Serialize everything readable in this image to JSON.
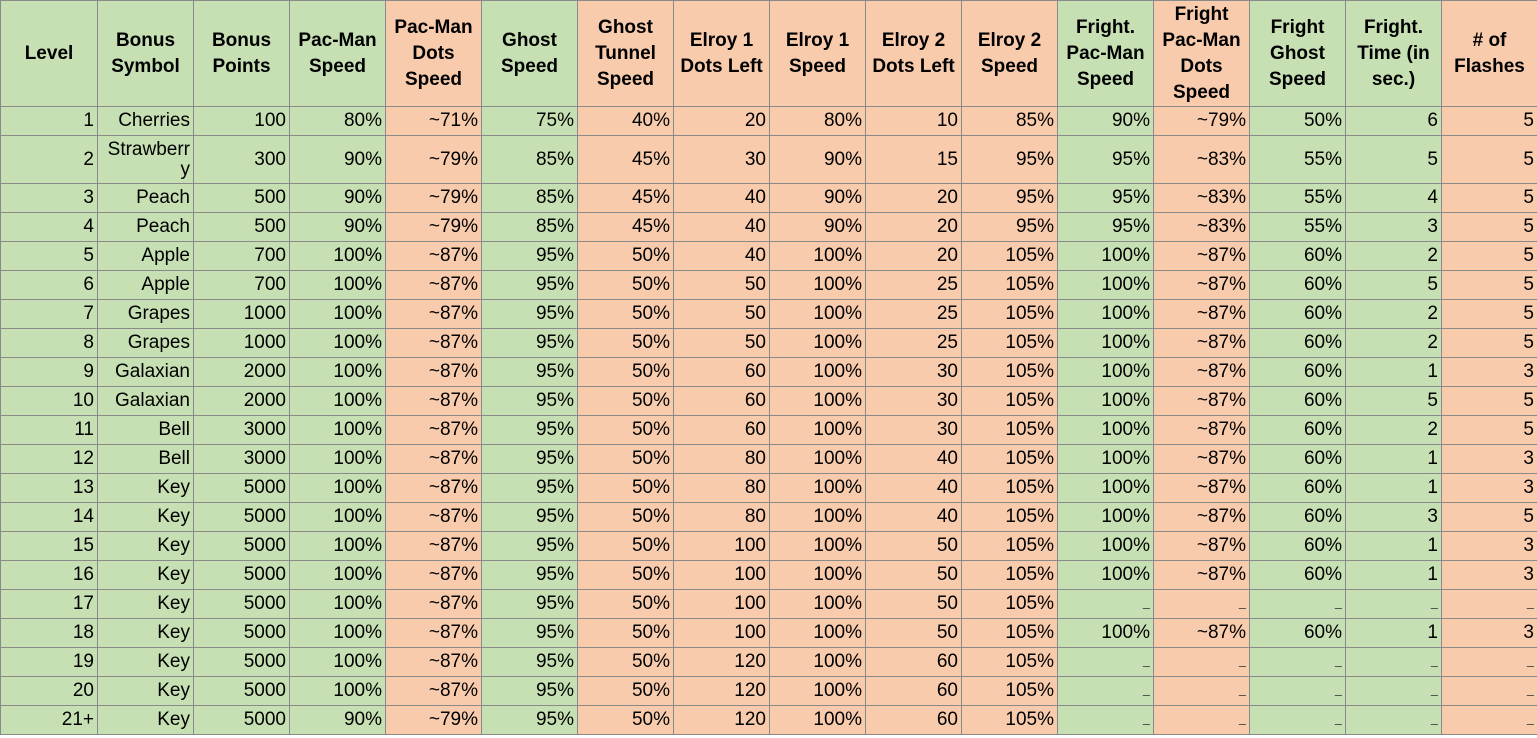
{
  "columns": [
    {
      "label": "Level",
      "color": "#c6e0b4"
    },
    {
      "label": "Bonus Symbol",
      "color": "#c6e0b4"
    },
    {
      "label": "Bonus Points",
      "color": "#c6e0b4"
    },
    {
      "label": "Pac-Man Speed",
      "color": "#c6e0b4"
    },
    {
      "label": "Pac-Man Dots Speed",
      "color": "#f8cbad"
    },
    {
      "label": "Ghost Speed",
      "color": "#c6e0b4"
    },
    {
      "label": "Ghost Tunnel Speed",
      "color": "#f8cbad"
    },
    {
      "label": "Elroy 1 Dots Left",
      "color": "#f8cbad"
    },
    {
      "label": "Elroy 1 Speed",
      "color": "#f8cbad"
    },
    {
      "label": "Elroy 2 Dots Left",
      "color": "#f8cbad"
    },
    {
      "label": "Elroy 2 Speed",
      "color": "#f8cbad"
    },
    {
      "label": "Fright. Pac-Man Speed",
      "color": "#c6e0b4"
    },
    {
      "label": "Fright Pac-Man Dots Speed",
      "color": "#f8cbad"
    },
    {
      "label": "Fright Ghost Speed",
      "color": "#c6e0b4"
    },
    {
      "label": "Fright. Time (in sec.)",
      "color": "#c6e0b4"
    },
    {
      "label": "# of Flashes",
      "color": "#f8cbad"
    }
  ],
  "rows": [
    [
      "1",
      "Cherries",
      "100",
      "80%",
      "~71%",
      "75%",
      "40%",
      "20",
      "80%",
      "10",
      "85%",
      "90%",
      "~79%",
      "50%",
      "6",
      "5"
    ],
    [
      "2",
      "Strawberry",
      "300",
      "90%",
      "~79%",
      "85%",
      "45%",
      "30",
      "90%",
      "15",
      "95%",
      "95%",
      "~83%",
      "55%",
      "5",
      "5"
    ],
    [
      "3",
      "Peach",
      "500",
      "90%",
      "~79%",
      "85%",
      "45%",
      "40",
      "90%",
      "20",
      "95%",
      "95%",
      "~83%",
      "55%",
      "4",
      "5"
    ],
    [
      "4",
      "Peach",
      "500",
      "90%",
      "~79%",
      "85%",
      "45%",
      "40",
      "90%",
      "20",
      "95%",
      "95%",
      "~83%",
      "55%",
      "3",
      "5"
    ],
    [
      "5",
      "Apple",
      "700",
      "100%",
      "~87%",
      "95%",
      "50%",
      "40",
      "100%",
      "20",
      "105%",
      "100%",
      "~87%",
      "60%",
      "2",
      "5"
    ],
    [
      "6",
      "Apple",
      "700",
      "100%",
      "~87%",
      "95%",
      "50%",
      "50",
      "100%",
      "25",
      "105%",
      "100%",
      "~87%",
      "60%",
      "5",
      "5"
    ],
    [
      "7",
      "Grapes",
      "1000",
      "100%",
      "~87%",
      "95%",
      "50%",
      "50",
      "100%",
      "25",
      "105%",
      "100%",
      "~87%",
      "60%",
      "2",
      "5"
    ],
    [
      "8",
      "Grapes",
      "1000",
      "100%",
      "~87%",
      "95%",
      "50%",
      "50",
      "100%",
      "25",
      "105%",
      "100%",
      "~87%",
      "60%",
      "2",
      "5"
    ],
    [
      "9",
      "Galaxian",
      "2000",
      "100%",
      "~87%",
      "95%",
      "50%",
      "60",
      "100%",
      "30",
      "105%",
      "100%",
      "~87%",
      "60%",
      "1",
      "3"
    ],
    [
      "10",
      "Galaxian",
      "2000",
      "100%",
      "~87%",
      "95%",
      "50%",
      "60",
      "100%",
      "30",
      "105%",
      "100%",
      "~87%",
      "60%",
      "5",
      "5"
    ],
    [
      "11",
      "Bell",
      "3000",
      "100%",
      "~87%",
      "95%",
      "50%",
      "60",
      "100%",
      "30",
      "105%",
      "100%",
      "~87%",
      "60%",
      "2",
      "5"
    ],
    [
      "12",
      "Bell",
      "3000",
      "100%",
      "~87%",
      "95%",
      "50%",
      "80",
      "100%",
      "40",
      "105%",
      "100%",
      "~87%",
      "60%",
      "1",
      "3"
    ],
    [
      "13",
      "Key",
      "5000",
      "100%",
      "~87%",
      "95%",
      "50%",
      "80",
      "100%",
      "40",
      "105%",
      "100%",
      "~87%",
      "60%",
      "1",
      "3"
    ],
    [
      "14",
      "Key",
      "5000",
      "100%",
      "~87%",
      "95%",
      "50%",
      "80",
      "100%",
      "40",
      "105%",
      "100%",
      "~87%",
      "60%",
      "3",
      "5"
    ],
    [
      "15",
      "Key",
      "5000",
      "100%",
      "~87%",
      "95%",
      "50%",
      "100",
      "100%",
      "50",
      "105%",
      "100%",
      "~87%",
      "60%",
      "1",
      "3"
    ],
    [
      "16",
      "Key",
      "5000",
      "100%",
      "~87%",
      "95%",
      "50%",
      "100",
      "100%",
      "50",
      "105%",
      "100%",
      "~87%",
      "60%",
      "1",
      "3"
    ],
    [
      "17",
      "Key",
      "5000",
      "100%",
      "~87%",
      "95%",
      "50%",
      "100",
      "100%",
      "50",
      "105%",
      "–",
      "–",
      "–",
      "–",
      "–"
    ],
    [
      "18",
      "Key",
      "5000",
      "100%",
      "~87%",
      "95%",
      "50%",
      "100",
      "100%",
      "50",
      "105%",
      "100%",
      "~87%",
      "60%",
      "1",
      "3"
    ],
    [
      "19",
      "Key",
      "5000",
      "100%",
      "~87%",
      "95%",
      "50%",
      "120",
      "100%",
      "60",
      "105%",
      "–",
      "–",
      "–",
      "–",
      "–"
    ],
    [
      "20",
      "Key",
      "5000",
      "100%",
      "~87%",
      "95%",
      "50%",
      "120",
      "100%",
      "60",
      "105%",
      "–",
      "–",
      "–",
      "–",
      "–"
    ],
    [
      "21+",
      "Key",
      "5000",
      "90%",
      "~79%",
      "95%",
      "50%",
      "120",
      "100%",
      "60",
      "105%",
      "–",
      "–",
      "–",
      "–",
      "–"
    ]
  ]
}
